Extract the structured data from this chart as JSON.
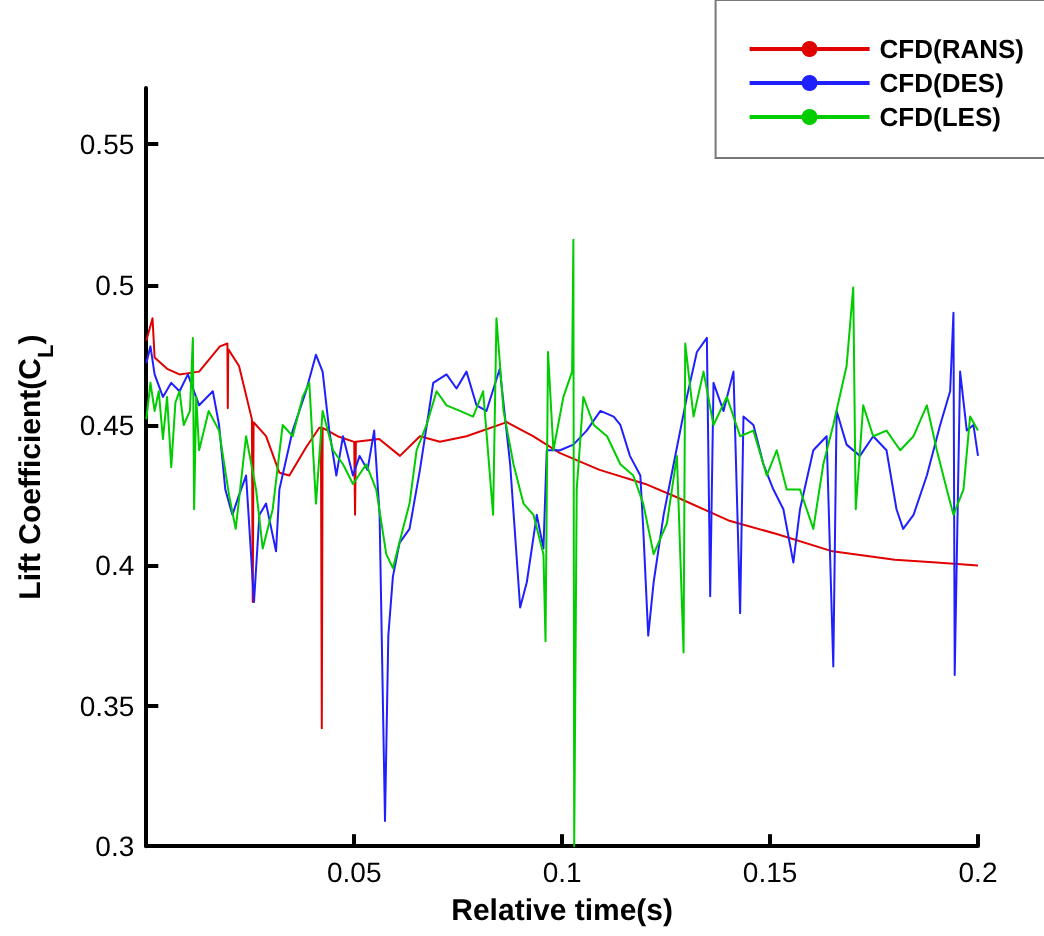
{
  "chart_data": {
    "type": "line",
    "xlabel": "Relative time(s)",
    "ylabel": "Lift Coefficient(C$_{L}$)",
    "xlim": [
      0,
      0.2
    ],
    "xticks": [
      {
        "value": 0,
        "label": null
      },
      0.05,
      0.1,
      0.15,
      0.2
    ],
    "ylim": [
      0.3,
      0.57
    ],
    "yticks": [
      0.3,
      0.35,
      0.4,
      0.45,
      0.5,
      0.55
    ],
    "grid": false,
    "legend": "top right",
    "marker": "none",
    "line_style": "solid",
    "series": [
      {
        "name": "CFD(RANS)",
        "color": "#e00000",
        "x": [
          0,
          0.0015,
          0.002,
          0.005,
          0.008,
          0.0127,
          0.0177,
          0.0195,
          0.0196,
          0.0197,
          0.0223,
          0.0254,
          0.0256,
          0.0258,
          0.0288,
          0.032,
          0.0344,
          0.0384,
          0.0416,
          0.042,
          0.0422,
          0.0424,
          0.046,
          0.05,
          0.0502,
          0.0504,
          0.056,
          0.061,
          0.0658,
          0.0706,
          0.077,
          0.0867,
          0.093,
          0.0995,
          0.109,
          0.12,
          0.128,
          0.14,
          0.152,
          0.165,
          0.18,
          0.19,
          0.2
        ],
        "values": [
          0.48,
          0.488,
          0.474,
          0.47,
          0.468,
          0.469,
          0.478,
          0.479,
          0.456,
          0.477,
          0.471,
          0.452,
          0.387,
          0.451,
          0.446,
          0.433,
          0.432,
          0.442,
          0.449,
          0.449,
          0.342,
          0.449,
          0.446,
          0.444,
          0.418,
          0.444,
          0.445,
          0.439,
          0.446,
          0.444,
          0.446,
          0.451,
          0.446,
          0.44,
          0.434,
          0.429,
          0.424,
          0.416,
          0.411,
          0.405,
          0.402,
          0.401,
          0.4
        ]
      },
      {
        "name": "CFD(DES)",
        "color": "#2020ff",
        "x": [
          0,
          0.001,
          0.002,
          0.004,
          0.006,
          0.008,
          0.01,
          0.0127,
          0.016,
          0.0175,
          0.019,
          0.0207,
          0.0223,
          0.024,
          0.0259,
          0.0272,
          0.0288,
          0.0312,
          0.032,
          0.0352,
          0.0384,
          0.0408,
          0.0424,
          0.044,
          0.0457,
          0.0473,
          0.0497,
          0.0513,
          0.0532,
          0.0548,
          0.0561,
          0.0574,
          0.0582,
          0.0593,
          0.0609,
          0.0633,
          0.0658,
          0.069,
          0.0722,
          0.0746,
          0.077,
          0.0794,
          0.0818,
          0.085,
          0.0875,
          0.0899,
          0.0915,
          0.0939,
          0.0955,
          0.0963,
          0.0995,
          0.1027,
          0.1059,
          0.1092,
          0.1124,
          0.114,
          0.1163,
          0.1188,
          0.1195,
          0.1207,
          0.122,
          0.1244,
          0.1268,
          0.13,
          0.1324,
          0.1348,
          0.1356,
          0.1364,
          0.1388,
          0.1412,
          0.1428,
          0.1436,
          0.146,
          0.1484,
          0.1508,
          0.1532,
          0.1556,
          0.1572,
          0.1604,
          0.1636,
          0.1652,
          0.166,
          0.1684,
          0.1716,
          0.1748,
          0.178,
          0.1804,
          0.182,
          0.1845,
          0.1877,
          0.1909,
          0.1933,
          0.1941,
          0.1944,
          0.1957,
          0.1973,
          0.1989,
          0.2
        ],
        "values": [
          0.472,
          0.478,
          0.468,
          0.46,
          0.465,
          0.462,
          0.468,
          0.457,
          0.462,
          0.45,
          0.427,
          0.418,
          0.425,
          0.432,
          0.387,
          0.418,
          0.422,
          0.405,
          0.427,
          0.448,
          0.462,
          0.475,
          0.469,
          0.448,
          0.432,
          0.446,
          0.432,
          0.439,
          0.434,
          0.448,
          0.418,
          0.309,
          0.375,
          0.396,
          0.408,
          0.413,
          0.434,
          0.465,
          0.468,
          0.463,
          0.469,
          0.457,
          0.455,
          0.47,
          0.436,
          0.385,
          0.394,
          0.418,
          0.406,
          0.441,
          0.441,
          0.443,
          0.448,
          0.455,
          0.453,
          0.45,
          0.439,
          0.432,
          0.413,
          0.375,
          0.394,
          0.418,
          0.436,
          0.46,
          0.476,
          0.481,
          0.389,
          0.465,
          0.455,
          0.469,
          0.383,
          0.453,
          0.45,
          0.436,
          0.427,
          0.42,
          0.401,
          0.42,
          0.441,
          0.446,
          0.364,
          0.455,
          0.443,
          0.439,
          0.446,
          0.441,
          0.42,
          0.413,
          0.418,
          0.432,
          0.45,
          0.462,
          0.49,
          0.361,
          0.469,
          0.448,
          0.45,
          0.439
        ]
      },
      {
        "name": "CFD(LES)",
        "color": "#00cc00",
        "x": [
          0,
          0.001,
          0.002,
          0.003,
          0.004,
          0.005,
          0.006,
          0.007,
          0.008,
          0.009,
          0.0105,
          0.0112,
          0.0115,
          0.012,
          0.0127,
          0.015,
          0.0175,
          0.0199,
          0.0215,
          0.024,
          0.0264,
          0.028,
          0.0304,
          0.0328,
          0.0352,
          0.0376,
          0.0392,
          0.0408,
          0.0424,
          0.0449,
          0.0473,
          0.0497,
          0.0529,
          0.0553,
          0.0577,
          0.0593,
          0.0617,
          0.0633,
          0.065,
          0.0674,
          0.0698,
          0.0722,
          0.0754,
          0.0786,
          0.081,
          0.0834,
          0.0842,
          0.0859,
          0.0883,
          0.0907,
          0.0931,
          0.0955,
          0.096,
          0.0966,
          0.0979,
          0.1003,
          0.1024,
          0.1027,
          0.1029,
          0.1035,
          0.1051,
          0.1076,
          0.1108,
          0.114,
          0.1171,
          0.1195,
          0.122,
          0.1252,
          0.1276,
          0.1292,
          0.1296,
          0.1316,
          0.134,
          0.1364,
          0.1396,
          0.1428,
          0.146,
          0.1492,
          0.1516,
          0.154,
          0.1572,
          0.1604,
          0.1628,
          0.1652,
          0.1684,
          0.17,
          0.1706,
          0.1724,
          0.1748,
          0.178,
          0.1813,
          0.1845,
          0.1877,
          0.1901,
          0.1925,
          0.1941,
          0.1965,
          0.1981,
          0.2
        ],
        "values": [
          0.452,
          0.465,
          0.455,
          0.462,
          0.445,
          0.46,
          0.435,
          0.458,
          0.462,
          0.45,
          0.455,
          0.481,
          0.42,
          0.46,
          0.441,
          0.455,
          0.448,
          0.425,
          0.413,
          0.446,
          0.427,
          0.406,
          0.42,
          0.45,
          0.446,
          0.46,
          0.465,
          0.422,
          0.455,
          0.441,
          0.436,
          0.429,
          0.436,
          0.427,
          0.404,
          0.399,
          0.413,
          0.422,
          0.441,
          0.45,
          0.462,
          0.457,
          0.455,
          0.453,
          0.462,
          0.418,
          0.488,
          0.455,
          0.436,
          0.422,
          0.418,
          0.404,
          0.373,
          0.476,
          0.441,
          0.46,
          0.469,
          0.516,
          0.3,
          0.427,
          0.46,
          0.45,
          0.446,
          0.436,
          0.432,
          0.422,
          0.404,
          0.415,
          0.439,
          0.369,
          0.479,
          0.453,
          0.469,
          0.45,
          0.46,
          0.446,
          0.448,
          0.432,
          0.441,
          0.427,
          0.427,
          0.413,
          0.436,
          0.45,
          0.471,
          0.499,
          0.42,
          0.457,
          0.446,
          0.448,
          0.441,
          0.446,
          0.457,
          0.441,
          0.427,
          0.418,
          0.427,
          0.453,
          0.448
        ]
      }
    ]
  }
}
